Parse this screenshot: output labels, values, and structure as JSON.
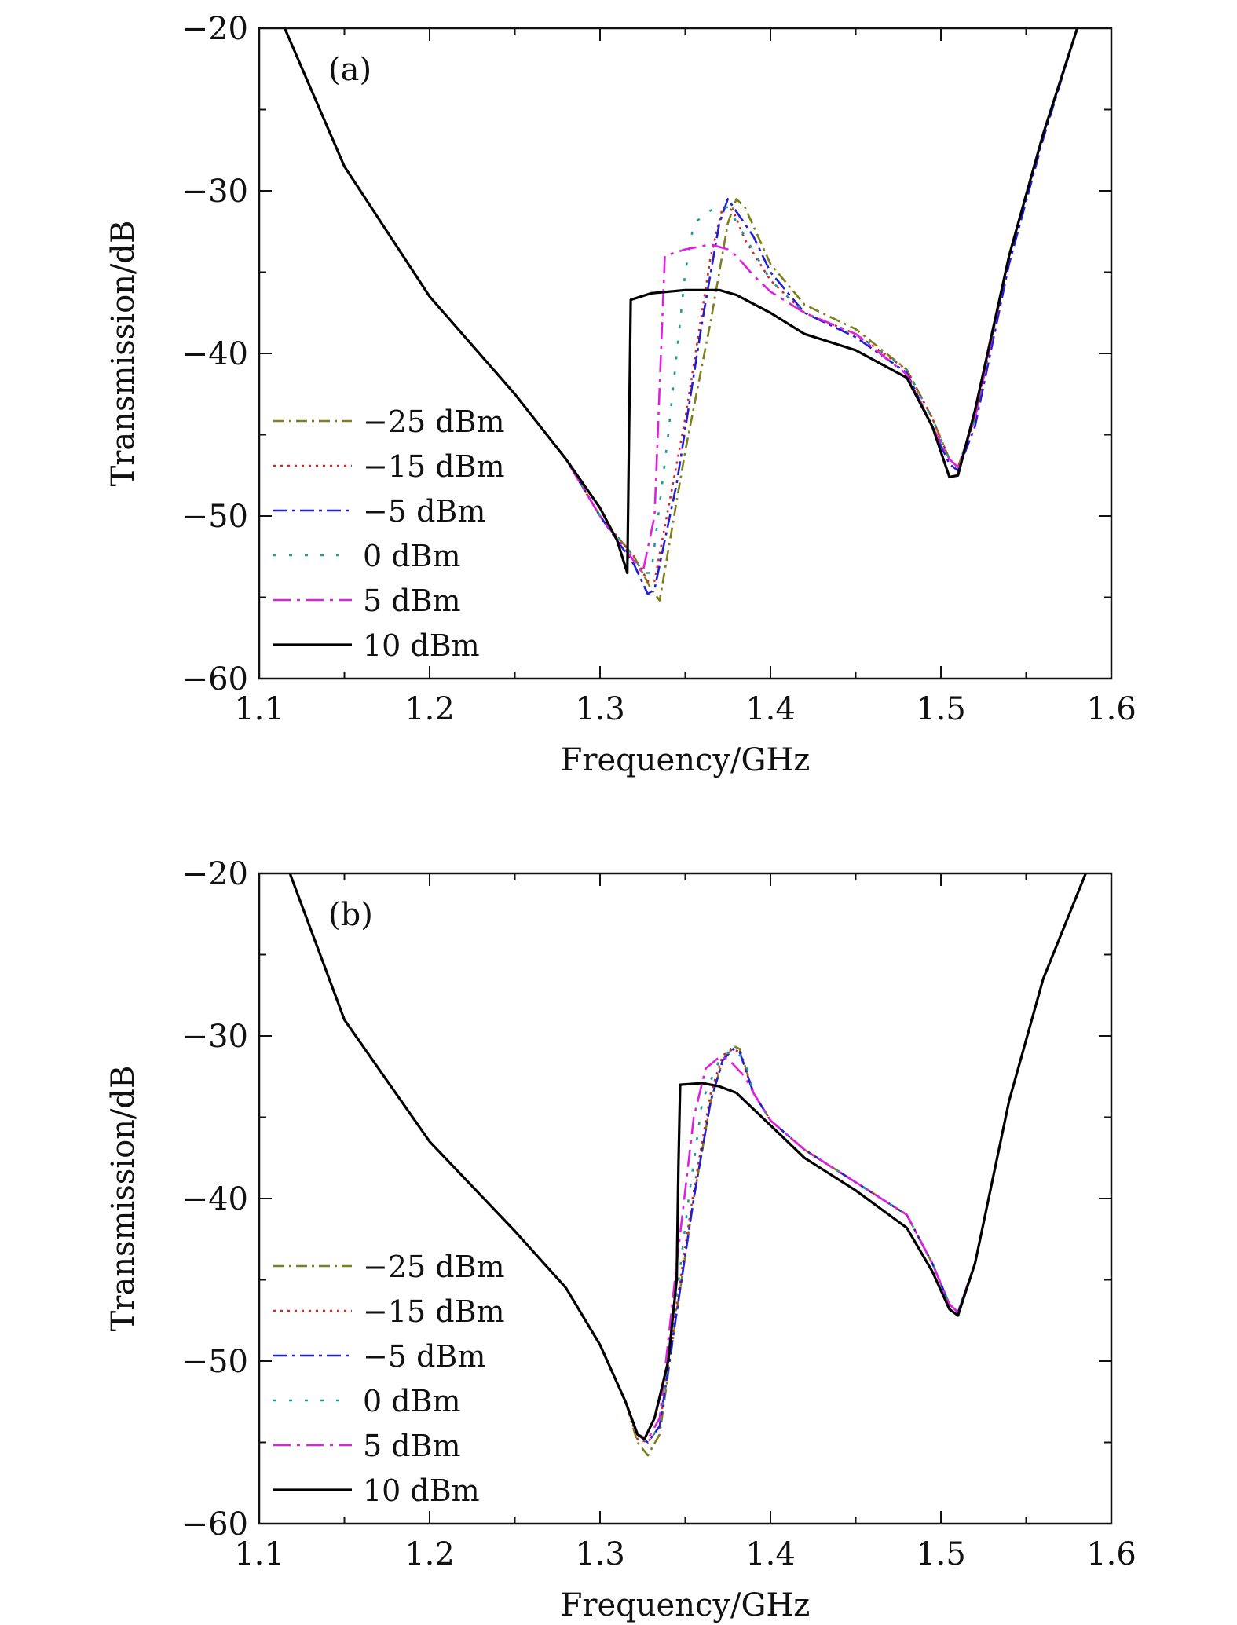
{
  "figure": {
    "style": {
      "series_colors": [
        "#7f7f1a",
        "#d62728",
        "#1f1fd6",
        "#1f9a9a",
        "#e020e0",
        "#000000"
      ],
      "series_dash": [
        "14,6,3,6",
        "3,6",
        "18,6,4,6",
        "4,16",
        "22,8,4,8",
        ""
      ]
    }
  },
  "chart_data": [
    {
      "type": "line",
      "panel_label": "(a)",
      "xlabel": "Frequency/GHz",
      "ylabel": "Transmission/dB",
      "xlim": [
        1.1,
        1.6
      ],
      "ylim": [
        -60,
        -20
      ],
      "xticks": [
        1.1,
        1.2,
        1.3,
        1.4,
        1.5,
        1.6
      ],
      "xtick_labels": [
        "1.1",
        "1.2",
        "1.3",
        "1.4",
        "1.5",
        "1.6"
      ],
      "yticks": [
        -60,
        -50,
        -40,
        -30,
        -20
      ],
      "ytick_labels": [
        "−60",
        "−50",
        "−40",
        "−30",
        "−20"
      ],
      "grid": false,
      "legend_position": "lower-left",
      "series": [
        {
          "name": "−25 dBm",
          "x": [
            1.115,
            1.15,
            1.2,
            1.25,
            1.28,
            1.3,
            1.32,
            1.33,
            1.335,
            1.35,
            1.365,
            1.375,
            1.38,
            1.385,
            1.4,
            1.42,
            1.45,
            1.48,
            1.495,
            1.505,
            1.51,
            1.52,
            1.54,
            1.56,
            1.58
          ],
          "y": [
            -20,
            -28.5,
            -36.5,
            -42.5,
            -46.5,
            -50,
            -52.5,
            -54.5,
            -55.2,
            -46,
            -38,
            -32,
            -30.5,
            -31,
            -34.5,
            -37,
            -38.5,
            -41,
            -44,
            -46.5,
            -47,
            -44,
            -34,
            -26.5,
            -20
          ]
        },
        {
          "name": "−15 dBm",
          "x": [
            1.115,
            1.15,
            1.2,
            1.25,
            1.28,
            1.3,
            1.32,
            1.328,
            1.332,
            1.35,
            1.365,
            1.372,
            1.378,
            1.385,
            1.4,
            1.42,
            1.45,
            1.48,
            1.495,
            1.505,
            1.51,
            1.52,
            1.54,
            1.56,
            1.58
          ],
          "y": [
            -20,
            -28.5,
            -36.5,
            -42.5,
            -46.5,
            -50,
            -52.5,
            -54,
            -54,
            -44,
            -34,
            -31,
            -31.2,
            -33,
            -35.5,
            -37.5,
            -38.8,
            -41,
            -44,
            -46.5,
            -47,
            -44,
            -34,
            -26.5,
            -20
          ]
        },
        {
          "name": "−5 dBm",
          "x": [
            1.115,
            1.15,
            1.2,
            1.25,
            1.28,
            1.3,
            1.32,
            1.328,
            1.332,
            1.345,
            1.36,
            1.37,
            1.375,
            1.39,
            1.4,
            1.42,
            1.45,
            1.48,
            1.495,
            1.505,
            1.51,
            1.52,
            1.54,
            1.56,
            1.58
          ],
          "y": [
            -20,
            -28.5,
            -36.5,
            -42.5,
            -46.5,
            -50,
            -53,
            -54.8,
            -54.5,
            -48,
            -38,
            -32,
            -30.5,
            -32.8,
            -35,
            -37.5,
            -39,
            -41.2,
            -44.5,
            -46.8,
            -47.2,
            -44.5,
            -34.5,
            -26.8,
            -20
          ]
        },
        {
          "name": "0 dBm",
          "x": [
            1.115,
            1.15,
            1.2,
            1.25,
            1.28,
            1.3,
            1.32,
            1.325,
            1.33,
            1.34,
            1.35,
            1.355,
            1.365,
            1.375,
            1.385,
            1.4,
            1.42,
            1.45,
            1.48,
            1.495,
            1.505,
            1.51,
            1.52,
            1.54,
            1.56,
            1.58
          ],
          "y": [
            -20,
            -28.5,
            -36.5,
            -42.5,
            -46.5,
            -50,
            -52.5,
            -53.5,
            -53.5,
            -45,
            -35,
            -32,
            -31.2,
            -31,
            -32.8,
            -35.5,
            -37.5,
            -38.8,
            -41,
            -44,
            -46.5,
            -47,
            -44,
            -34,
            -26.5,
            -20
          ]
        },
        {
          "name": "5 dBm",
          "x": [
            1.115,
            1.15,
            1.2,
            1.25,
            1.28,
            1.3,
            1.318,
            1.325,
            1.332,
            1.335,
            1.338,
            1.35,
            1.365,
            1.375,
            1.38,
            1.39,
            1.4,
            1.42,
            1.45,
            1.48,
            1.495,
            1.505,
            1.51,
            1.52,
            1.54,
            1.56,
            1.58
          ],
          "y": [
            -20,
            -28.5,
            -36.5,
            -42.5,
            -46.5,
            -50,
            -52.5,
            -53.5,
            -50,
            -42,
            -34,
            -33.6,
            -33.3,
            -33.6,
            -34,
            -35.2,
            -36.2,
            -37.5,
            -38.8,
            -41.3,
            -44.5,
            -46.5,
            -47,
            -44,
            -34,
            -26.5,
            -20
          ]
        },
        {
          "name": "10 dBm",
          "x": [
            1.115,
            1.15,
            1.2,
            1.25,
            1.28,
            1.3,
            1.31,
            1.316,
            1.317,
            1.318,
            1.33,
            1.35,
            1.37,
            1.38,
            1.4,
            1.42,
            1.45,
            1.48,
            1.495,
            1.505,
            1.51,
            1.52,
            1.54,
            1.56,
            1.58
          ],
          "y": [
            -20,
            -28.5,
            -36.5,
            -42.5,
            -46.5,
            -49.5,
            -51.5,
            -53.5,
            -45,
            -36.7,
            -36.3,
            -36.1,
            -36.1,
            -36.4,
            -37.5,
            -38.8,
            -39.8,
            -41.5,
            -44.5,
            -47.6,
            -47.5,
            -43.5,
            -34,
            -26.5,
            -20
          ]
        }
      ]
    },
    {
      "type": "line",
      "panel_label": "(b)",
      "xlabel": "Frequency/GHz",
      "ylabel": "Transmission/dB",
      "xlim": [
        1.1,
        1.6
      ],
      "ylim": [
        -60,
        -20
      ],
      "xticks": [
        1.1,
        1.2,
        1.3,
        1.4,
        1.5,
        1.6
      ],
      "xtick_labels": [
        "1.1",
        "1.2",
        "1.3",
        "1.4",
        "1.5",
        "1.6"
      ],
      "yticks": [
        -60,
        -50,
        -40,
        -30,
        -20
      ],
      "ytick_labels": [
        "−60",
        "−50",
        "−40",
        "−30",
        "−20"
      ],
      "grid": false,
      "legend_position": "lower-left",
      "series": [
        {
          "name": "−25 dBm",
          "x": [
            1.118,
            1.15,
            1.2,
            1.25,
            1.28,
            1.3,
            1.315,
            1.322,
            1.328,
            1.335,
            1.345,
            1.355,
            1.365,
            1.372,
            1.378,
            1.382,
            1.39,
            1.4,
            1.42,
            1.45,
            1.48,
            1.495,
            1.505,
            1.51,
            1.52,
            1.54,
            1.56,
            1.585
          ],
          "y": [
            -20,
            -29,
            -36.5,
            -42,
            -45.5,
            -49,
            -52.5,
            -55,
            -55.8,
            -54.5,
            -47,
            -40,
            -34,
            -31.5,
            -30.6,
            -30.8,
            -33.5,
            -35.2,
            -37,
            -39,
            -41,
            -44,
            -46.5,
            -47,
            -44,
            -34,
            -26.5,
            -20
          ]
        },
        {
          "name": "−15 dBm",
          "x": [
            1.118,
            1.15,
            1.2,
            1.25,
            1.28,
            1.3,
            1.315,
            1.322,
            1.328,
            1.335,
            1.345,
            1.355,
            1.365,
            1.372,
            1.378,
            1.382,
            1.39,
            1.4,
            1.42,
            1.45,
            1.48,
            1.495,
            1.505,
            1.51,
            1.52,
            1.54,
            1.56,
            1.585
          ],
          "y": [
            -20,
            -29,
            -36.5,
            -42,
            -45.5,
            -49,
            -52.5,
            -54.8,
            -55,
            -54,
            -46.5,
            -39.5,
            -33.5,
            -31.2,
            -30.8,
            -31,
            -33.5,
            -35.2,
            -37,
            -39,
            -41,
            -44,
            -46.5,
            -47,
            -44,
            -34,
            -26.5,
            -20
          ]
        },
        {
          "name": "−5 dBm",
          "x": [
            1.118,
            1.15,
            1.2,
            1.25,
            1.28,
            1.3,
            1.315,
            1.322,
            1.328,
            1.335,
            1.345,
            1.355,
            1.365,
            1.372,
            1.378,
            1.382,
            1.39,
            1.4,
            1.42,
            1.45,
            1.48,
            1.495,
            1.505,
            1.51,
            1.52,
            1.54,
            1.56,
            1.585
          ],
          "y": [
            -20,
            -29,
            -36.5,
            -42,
            -45.5,
            -49,
            -52.5,
            -54.5,
            -55,
            -54,
            -47,
            -40,
            -34,
            -31.5,
            -30.8,
            -31,
            -33.5,
            -35.2,
            -37,
            -39,
            -41,
            -44,
            -46.5,
            -47,
            -44,
            -34,
            -26.5,
            -20
          ]
        },
        {
          "name": "0 dBm",
          "x": [
            1.118,
            1.15,
            1.2,
            1.25,
            1.28,
            1.3,
            1.315,
            1.322,
            1.328,
            1.335,
            1.345,
            1.352,
            1.36,
            1.37,
            1.378,
            1.385,
            1.39,
            1.4,
            1.42,
            1.45,
            1.48,
            1.495,
            1.505,
            1.51,
            1.52,
            1.54,
            1.56,
            1.585
          ],
          "y": [
            -20,
            -29,
            -36.5,
            -42,
            -45.5,
            -49,
            -52.5,
            -54.5,
            -55,
            -54,
            -46,
            -40,
            -34,
            -31.5,
            -30.8,
            -31.5,
            -33.5,
            -35.2,
            -37,
            -39,
            -41,
            -44,
            -46.5,
            -47,
            -44,
            -34,
            -26.5,
            -20
          ]
        },
        {
          "name": "5 dBm",
          "x": [
            1.118,
            1.15,
            1.2,
            1.25,
            1.28,
            1.3,
            1.315,
            1.322,
            1.328,
            1.335,
            1.345,
            1.355,
            1.362,
            1.37,
            1.375,
            1.385,
            1.39,
            1.4,
            1.42,
            1.45,
            1.48,
            1.495,
            1.505,
            1.51,
            1.52,
            1.54,
            1.56,
            1.585
          ],
          "y": [
            -20,
            -29,
            -36.5,
            -42,
            -45.5,
            -49,
            -52.5,
            -54.5,
            -54.8,
            -53.5,
            -44,
            -35,
            -32,
            -31.3,
            -31.4,
            -32.5,
            -33.5,
            -35.2,
            -37,
            -39,
            -41,
            -44,
            -46.5,
            -47,
            -44,
            -34,
            -26.5,
            -20
          ]
        },
        {
          "name": "10 dBm",
          "x": [
            1.118,
            1.15,
            1.2,
            1.25,
            1.28,
            1.3,
            1.315,
            1.322,
            1.326,
            1.332,
            1.34,
            1.345,
            1.346,
            1.347,
            1.36,
            1.37,
            1.38,
            1.4,
            1.42,
            1.45,
            1.48,
            1.495,
            1.505,
            1.51,
            1.52,
            1.54,
            1.56,
            1.585
          ],
          "y": [
            -20,
            -29,
            -36.5,
            -42,
            -45.5,
            -49,
            -52.5,
            -54.5,
            -54.8,
            -53.5,
            -50,
            -45,
            -38,
            -33,
            -32.9,
            -33.1,
            -33.5,
            -35.5,
            -37.5,
            -39.5,
            -41.8,
            -44.5,
            -46.8,
            -47.2,
            -44,
            -34,
            -26.5,
            -20
          ]
        }
      ]
    }
  ]
}
